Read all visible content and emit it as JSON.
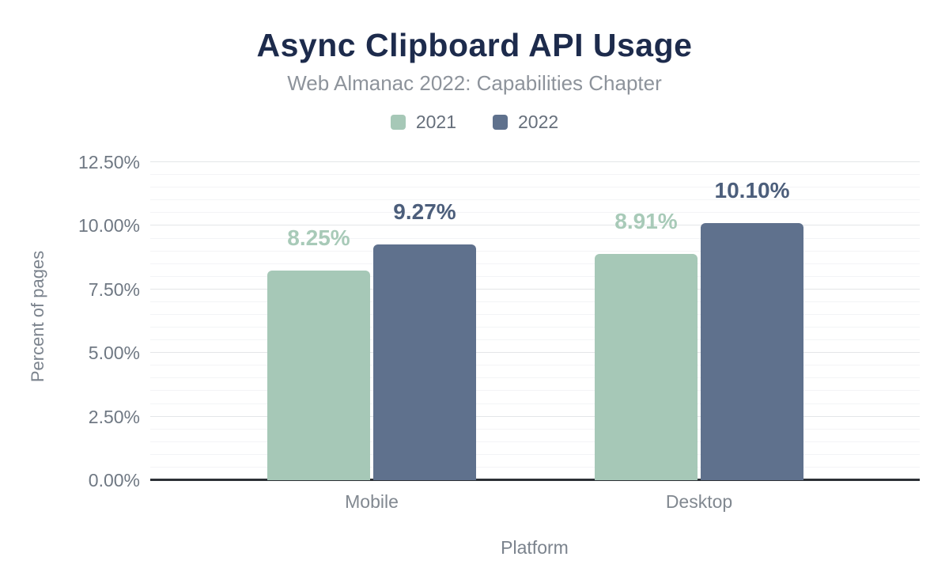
{
  "chart_data": {
    "type": "bar",
    "title": "Async Clipboard API Usage",
    "subtitle": "Web Almanac 2022: Capabilities Chapter",
    "xlabel": "Platform",
    "ylabel": "Percent of pages",
    "categories": [
      "Mobile",
      "Desktop"
    ],
    "series": [
      {
        "name": "2021",
        "values": [
          8.25,
          8.91
        ],
        "labels": [
          "8.25%",
          "8.91%"
        ],
        "color": "#a6c8b7",
        "label_color": "#a8cab8"
      },
      {
        "name": "2022",
        "values": [
          9.27,
          10.1
        ],
        "labels": [
          "9.27%",
          "10.10%"
        ],
        "color": "#5f718d",
        "label_color": "#4c5e7b"
      }
    ],
    "ylim": [
      0,
      13
    ],
    "yticks": [
      0,
      2.5,
      5,
      7.5,
      10,
      12.5
    ],
    "ytick_labels": [
      "0.00%",
      "2.50%",
      "5.00%",
      "7.50%",
      "10.00%",
      "12.50%"
    ],
    "minor_grid_step": 0.5,
    "grid": true,
    "legend_position": "top",
    "colors": {
      "title_text": "#1d2b4c",
      "subtitle_text": "#8d939b",
      "axis_text": "#6f7883",
      "axis_line": "#2d3136",
      "major_gridline": "#e4e6e8",
      "minor_gridline": "#f3f4f6",
      "background": "#ffffff"
    }
  }
}
